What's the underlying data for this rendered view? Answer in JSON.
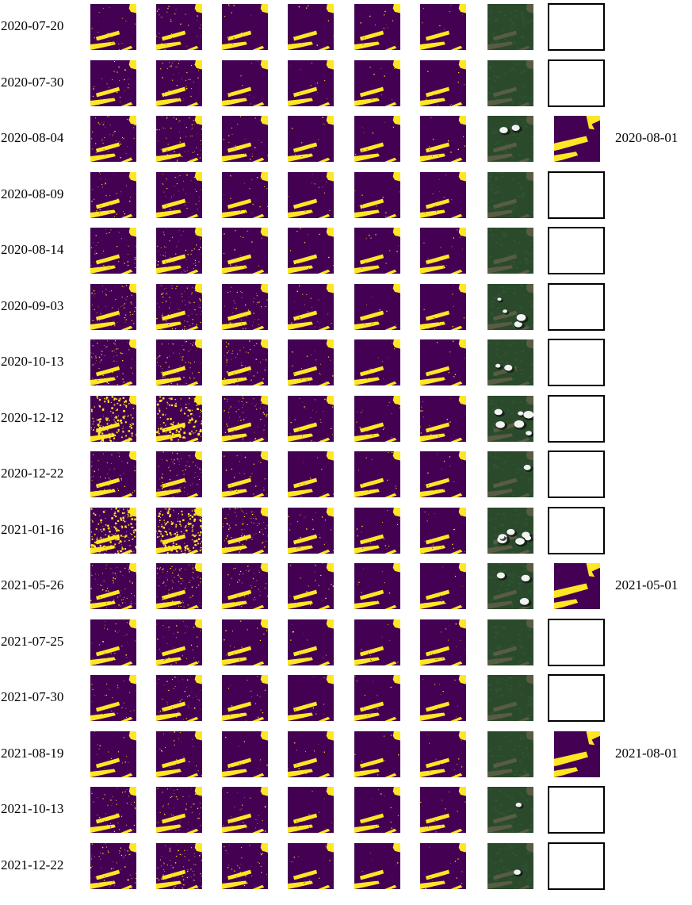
{
  "colors": {
    "background": "#440154",
    "foreground": "#fde725",
    "rgb_forest": "#2b4a2c",
    "rgb_clearing": "#7c6b55",
    "rgb_cloud": "#f2f4f4",
    "rgb_shadow": "#0f1a10"
  },
  "rows": [
    {
      "date": "2020-07-20",
      "reference_date": "",
      "has_reference": false,
      "noise": [
        0.02,
        0.04,
        0.01,
        0.01,
        0.01,
        0.01
      ],
      "cloud": 0.0
    },
    {
      "date": "2020-07-30",
      "reference_date": "",
      "has_reference": false,
      "noise": [
        0.03,
        0.05,
        0.01,
        0.01,
        0.01,
        0.01
      ],
      "cloud": 0.0
    },
    {
      "date": "2020-08-04",
      "reference_date": "2020-08-01",
      "has_reference": true,
      "noise": [
        0.05,
        0.07,
        0.02,
        0.01,
        0.01,
        0.01
      ],
      "cloud": 0.2
    },
    {
      "date": "2020-08-09",
      "reference_date": "",
      "has_reference": false,
      "noise": [
        0.04,
        0.06,
        0.02,
        0.01,
        0.01,
        0.01
      ],
      "cloud": 0.0
    },
    {
      "date": "2020-08-14",
      "reference_date": "",
      "has_reference": false,
      "noise": [
        0.05,
        0.07,
        0.02,
        0.01,
        0.01,
        0.01
      ],
      "cloud": 0.0
    },
    {
      "date": "2020-09-03",
      "reference_date": "",
      "has_reference": false,
      "noise": [
        0.08,
        0.1,
        0.05,
        0.02,
        0.01,
        0.01
      ],
      "cloud": 0.35
    },
    {
      "date": "2020-10-13",
      "reference_date": "",
      "has_reference": false,
      "noise": [
        0.1,
        0.08,
        0.06,
        0.02,
        0.01,
        0.01
      ],
      "cloud": 0.15
    },
    {
      "date": "2020-12-12",
      "reference_date": "",
      "has_reference": false,
      "noise": [
        0.18,
        0.16,
        0.07,
        0.03,
        0.02,
        0.02
      ],
      "cloud": 0.6
    },
    {
      "date": "2020-12-22",
      "reference_date": "",
      "has_reference": false,
      "noise": [
        0.06,
        0.08,
        0.03,
        0.01,
        0.01,
        0.01
      ],
      "cloud": 0.05
    },
    {
      "date": "2021-01-16",
      "reference_date": "",
      "has_reference": false,
      "noise": [
        0.22,
        0.2,
        0.1,
        0.03,
        0.02,
        0.02
      ],
      "cloud": 0.7
    },
    {
      "date": "2021-05-26",
      "reference_date": "2021-05-01",
      "has_reference": true,
      "noise": [
        0.09,
        0.11,
        0.05,
        0.02,
        0.01,
        0.01
      ],
      "cloud": 0.3
    },
    {
      "date": "2021-07-25",
      "reference_date": "",
      "has_reference": false,
      "noise": [
        0.03,
        0.05,
        0.02,
        0.01,
        0.01,
        0.01
      ],
      "cloud": 0.0
    },
    {
      "date": "2021-07-30",
      "reference_date": "",
      "has_reference": false,
      "noise": [
        0.03,
        0.05,
        0.02,
        0.01,
        0.01,
        0.01
      ],
      "cloud": 0.0
    },
    {
      "date": "2021-08-19",
      "reference_date": "2021-08-01",
      "has_reference": true,
      "noise": [
        0.02,
        0.03,
        0.01,
        0.01,
        0.01,
        0.01
      ],
      "cloud": 0.0
    },
    {
      "date": "2021-10-13",
      "reference_date": "",
      "has_reference": false,
      "noise": [
        0.05,
        0.07,
        0.03,
        0.01,
        0.01,
        0.01
      ],
      "cloud": 0.05
    },
    {
      "date": "2021-12-22",
      "reference_date": "",
      "has_reference": false,
      "noise": [
        0.07,
        0.09,
        0.04,
        0.01,
        0.01,
        0.01
      ],
      "cloud": 0.1
    }
  ]
}
